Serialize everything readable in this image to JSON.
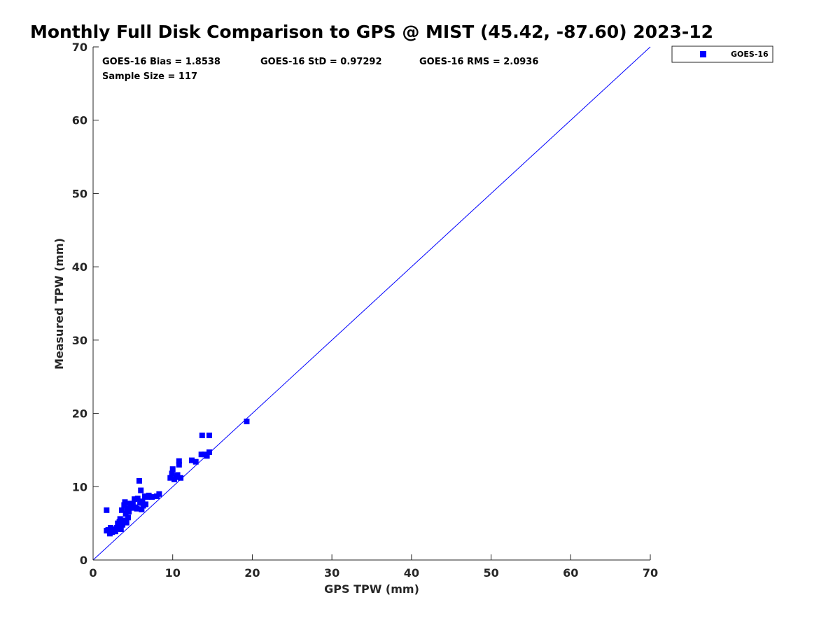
{
  "chart_data": {
    "type": "scatter",
    "title": "Monthly Full Disk Comparison to GPS @ MIST (45.42, -87.60) 2023-12",
    "xlabel": "GPS TPW (mm)",
    "ylabel": "Measured TPW (mm)",
    "xlim": [
      0,
      70
    ],
    "ylim": [
      0,
      70
    ],
    "xticks": [
      "0",
      "10",
      "20",
      "30",
      "40",
      "50",
      "60",
      "70"
    ],
    "yticks": [
      "0",
      "10",
      "20",
      "30",
      "40",
      "50",
      "60",
      "70"
    ],
    "grid": false,
    "legend_position": "outside-top-right",
    "reference_line": {
      "from": [
        0,
        0
      ],
      "to": [
        70,
        70
      ],
      "color": "#0000ff"
    },
    "stats": {
      "bias": "GOES-16 Bias = 1.8538",
      "std": "GOES-16 StD = 0.97292",
      "rms": "GOES-16 RMS = 2.0936",
      "sample_size": "Sample Size = 117"
    },
    "series": [
      {
        "name": "GOES-16",
        "color": "#0000ff",
        "marker": "square",
        "points": [
          [
            1.7,
            4.0
          ],
          [
            1.7,
            6.8
          ],
          [
            1.9,
            4.1
          ],
          [
            2.1,
            3.6
          ],
          [
            2.2,
            4.4
          ],
          [
            2.4,
            3.8
          ],
          [
            2.6,
            4.2
          ],
          [
            2.8,
            3.9
          ],
          [
            3.0,
            4.4
          ],
          [
            3.1,
            5.0
          ],
          [
            3.2,
            4.6
          ],
          [
            3.3,
            5.2
          ],
          [
            3.4,
            5.6
          ],
          [
            3.5,
            4.2
          ],
          [
            3.6,
            6.8
          ],
          [
            3.7,
            4.8
          ],
          [
            3.8,
            5.4
          ],
          [
            3.9,
            7.5
          ],
          [
            4.0,
            7.9
          ],
          [
            4.1,
            6.3
          ],
          [
            4.2,
            5.1
          ],
          [
            4.3,
            7.0
          ],
          [
            4.4,
            5.8
          ],
          [
            4.5,
            6.6
          ],
          [
            4.6,
            7.4
          ],
          [
            4.7,
            7.7
          ],
          [
            4.9,
            7.1
          ],
          [
            5.0,
            7.6
          ],
          [
            5.2,
            8.3
          ],
          [
            5.3,
            7.2
          ],
          [
            5.5,
            7.0
          ],
          [
            5.6,
            8.4
          ],
          [
            5.8,
            10.8
          ],
          [
            5.9,
            7.8
          ],
          [
            6.0,
            9.5
          ],
          [
            6.1,
            6.9
          ],
          [
            6.2,
            8.0
          ],
          [
            6.3,
            7.4
          ],
          [
            6.5,
            8.7
          ],
          [
            6.6,
            7.6
          ],
          [
            6.8,
            8.6
          ],
          [
            7.0,
            8.8
          ],
          [
            7.4,
            8.6
          ],
          [
            8.0,
            8.7
          ],
          [
            8.3,
            9.0
          ],
          [
            9.7,
            11.2
          ],
          [
            9.9,
            11.8
          ],
          [
            10.0,
            12.4
          ],
          [
            10.2,
            11.0
          ],
          [
            10.4,
            11.3
          ],
          [
            10.6,
            11.6
          ],
          [
            10.8,
            13.0
          ],
          [
            10.8,
            13.5
          ],
          [
            11.0,
            11.2
          ],
          [
            12.4,
            13.6
          ],
          [
            12.9,
            13.4
          ],
          [
            13.6,
            14.4
          ],
          [
            13.7,
            17.0
          ],
          [
            14.0,
            14.4
          ],
          [
            14.3,
            14.2
          ],
          [
            14.6,
            14.7
          ],
          [
            14.6,
            17.0
          ],
          [
            19.3,
            18.9
          ]
        ]
      }
    ]
  }
}
